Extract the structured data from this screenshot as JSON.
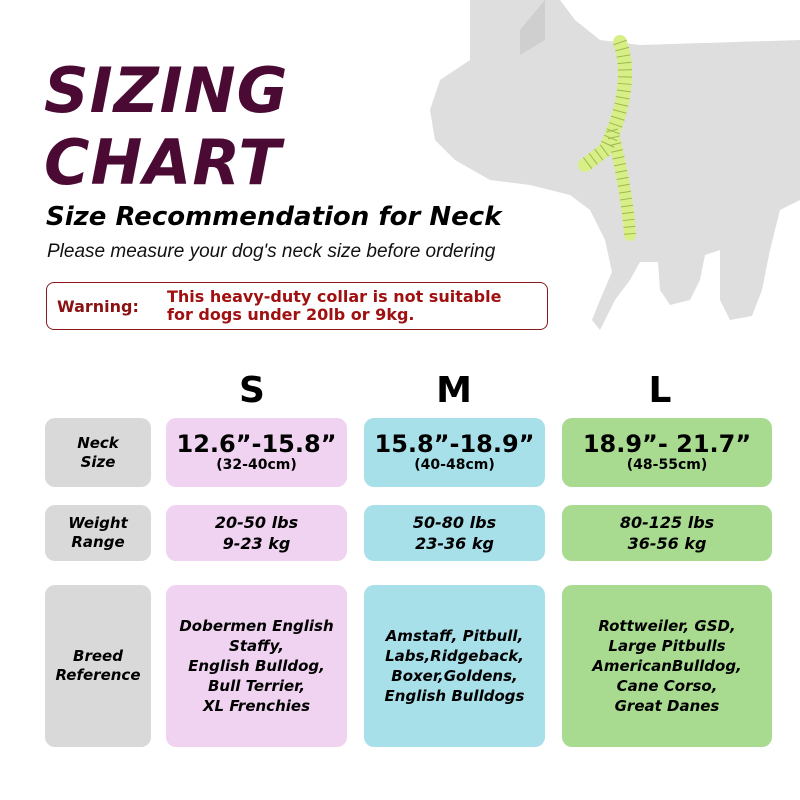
{
  "title_line1": "SIZING",
  "title_line2": "CHART",
  "subtitle": "Size Recommendation for Neck",
  "note": "Please measure your dog's neck size before ordering",
  "warning": {
    "label": "Warning:",
    "line1": "This heavy-duty collar is not suitable",
    "line2": "for dogs under 20lb or 9kg."
  },
  "colors": {
    "title": "#4a0a33",
    "pink": "#f0d2f1",
    "blue": "#a8e0ea",
    "green": "#a8db90",
    "label_bg": "#d9d9d9",
    "dog": "#dedede",
    "tape": "#d8ef88"
  },
  "row_labels": {
    "neck": [
      "Neck",
      "Size"
    ],
    "weight": [
      "Weight",
      "Range"
    ],
    "breed": [
      "Breed",
      "Reference"
    ]
  },
  "sizes": [
    {
      "name": "S",
      "neck": "12.6”-15.8”",
      "neck_cm": "(32-40cm)",
      "weight_lbs": "20-50 lbs",
      "weight_kg": "9-23 kg",
      "breeds": [
        "Dobermen English",
        "Staffy,",
        "English Bulldog,",
        "Bull Terrier,",
        "XL Frenchies"
      ]
    },
    {
      "name": "M",
      "neck": "15.8”-18.9”",
      "neck_cm": "(40-48cm)",
      "weight_lbs": "50-80 lbs",
      "weight_kg": "23-36 kg",
      "breeds": [
        "Amstaff, Pitbull,",
        "Labs,Ridgeback,",
        "Boxer,Goldens,",
        "English Bulldogs"
      ]
    },
    {
      "name": "L",
      "neck": "18.9”- 21.7”",
      "neck_cm": "(48-55cm)",
      "weight_lbs": "80-125 lbs",
      "weight_kg": "36-56 kg",
      "breeds": [
        "Rottweiler, GSD,",
        "Large Pitbulls",
        "AmericanBulldog,",
        "Cane Corso,",
        "Great Danes"
      ]
    }
  ]
}
